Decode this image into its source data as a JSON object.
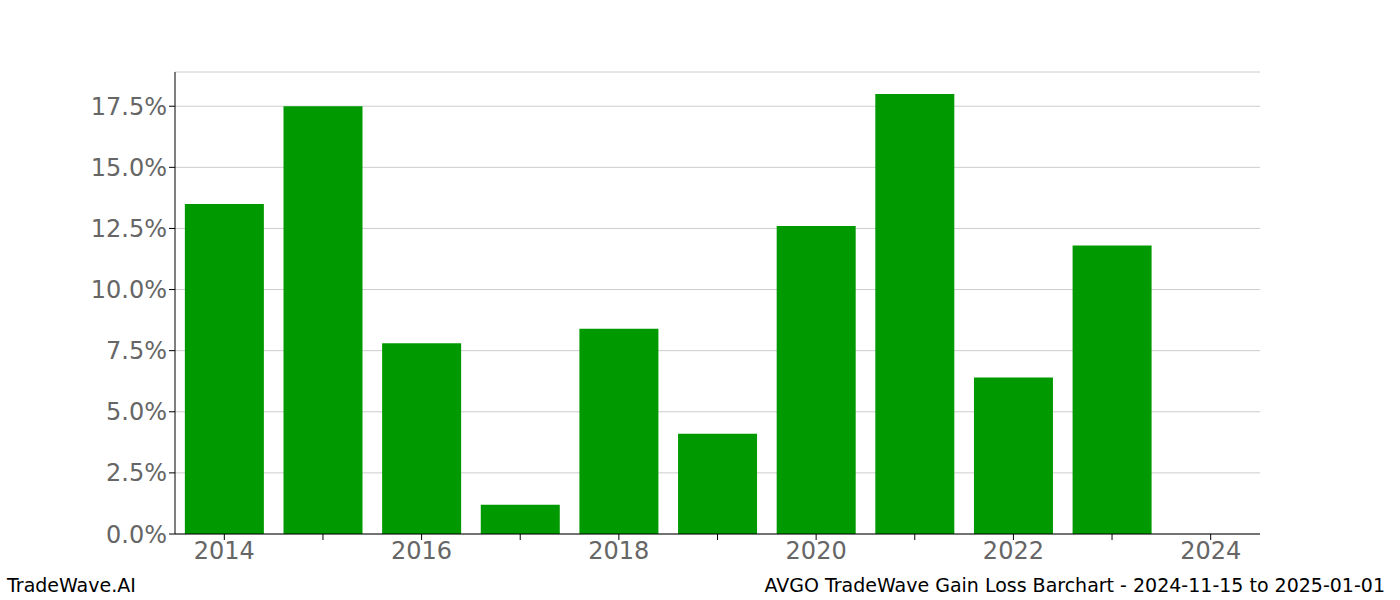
{
  "chart_data": {
    "type": "bar",
    "title": "AVGO TradeWave Gain Loss Barchart - 2024-11-15 to 2025-01-01",
    "source": "TradeWave.AI",
    "categories": [
      "2014",
      null,
      "2016",
      null,
      "2018",
      null,
      "2020",
      null,
      "2022",
      null,
      "2024"
    ],
    "values": [
      13.5,
      17.5,
      7.8,
      1.2,
      8.4,
      4.1,
      12.6,
      18.0,
      6.4,
      11.8,
      null
    ],
    "color": "#009900",
    "ylim": [
      0,
      18.9
    ],
    "yticks": [
      {
        "value": 0,
        "label": "0.0%"
      },
      {
        "value": 2.5,
        "label": "2.5%"
      },
      {
        "value": 5,
        "label": "5.0%"
      },
      {
        "value": 7.5,
        "label": "7.5%"
      },
      {
        "value": 10,
        "label": "10.0%"
      },
      {
        "value": 12.5,
        "label": "12.5%"
      },
      {
        "value": 15,
        "label": "15.0%"
      },
      {
        "value": 17.5,
        "label": "17.5%"
      }
    ],
    "grid": true
  }
}
